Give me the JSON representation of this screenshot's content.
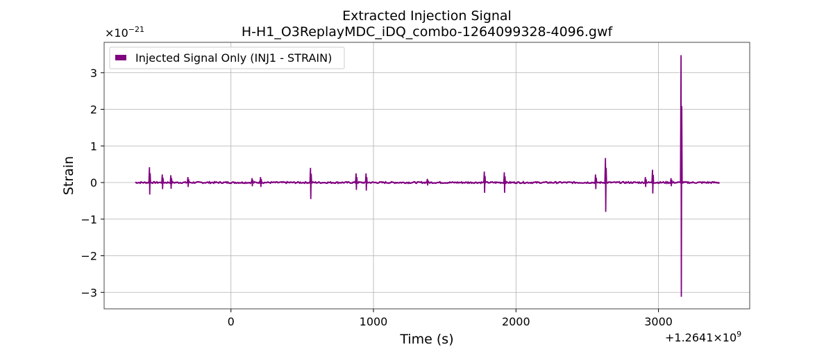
{
  "chart_data": {
    "type": "line",
    "title": "Extracted Injection Signal",
    "subtitle": "H-H1_O3ReplayMDC_iDQ_combo-1264099328-4096.gwf",
    "xlabel": "Time (s)",
    "ylabel": "Strain",
    "x_offset_text": "+1.2641×10",
    "x_offset_exp": "9",
    "y_scale_text": "×10",
    "y_scale_exp": "−21",
    "xlim": [
      -890,
      3640
    ],
    "ylim": [
      -3.45,
      3.83
    ],
    "x_ticks": [
      0,
      1000,
      2000,
      3000
    ],
    "x_tick_labels": [
      "0",
      "1000",
      "2000",
      "3000"
    ],
    "y_ticks": [
      3,
      2,
      1,
      0,
      -1,
      -2,
      -3
    ],
    "y_tick_labels": [
      "3",
      "2",
      "1",
      "0",
      "−1",
      "−2",
      "−3"
    ],
    "grid": true,
    "legend_position": "top-left",
    "series": [
      {
        "name": "Injected Signal Only (INJ1 - STRAIN)",
        "color": "#800080",
        "x_range": [
          -672,
          3428
        ],
        "baseline_noise": 0.04,
        "bursts": [
          {
            "t": -570,
            "up": 0.42,
            "down": -0.33
          },
          {
            "t": -480,
            "up": 0.22,
            "down": -0.18
          },
          {
            "t": -420,
            "up": 0.2,
            "down": -0.17
          },
          {
            "t": -300,
            "up": 0.15,
            "down": -0.12
          },
          {
            "t": 150,
            "up": 0.12,
            "down": -0.1
          },
          {
            "t": 210,
            "up": 0.15,
            "down": -0.12
          },
          {
            "t": 560,
            "up": 0.4,
            "down": -0.45
          },
          {
            "t": 880,
            "up": 0.25,
            "down": -0.2
          },
          {
            "t": 950,
            "up": 0.25,
            "down": -0.22
          },
          {
            "t": 1380,
            "up": 0.1,
            "down": -0.08
          },
          {
            "t": 1780,
            "up": 0.3,
            "down": -0.28
          },
          {
            "t": 1920,
            "up": 0.28,
            "down": -0.28
          },
          {
            "t": 2560,
            "up": 0.22,
            "down": -0.18
          },
          {
            "t": 2630,
            "up": 0.67,
            "down": -0.8
          },
          {
            "t": 2910,
            "up": 0.15,
            "down": -0.12
          },
          {
            "t": 2960,
            "up": 0.35,
            "down": -0.3
          },
          {
            "t": 3090,
            "up": 0.12,
            "down": -0.1
          },
          {
            "t": 3160,
            "up": 3.48,
            "down": -3.12
          }
        ]
      }
    ]
  }
}
